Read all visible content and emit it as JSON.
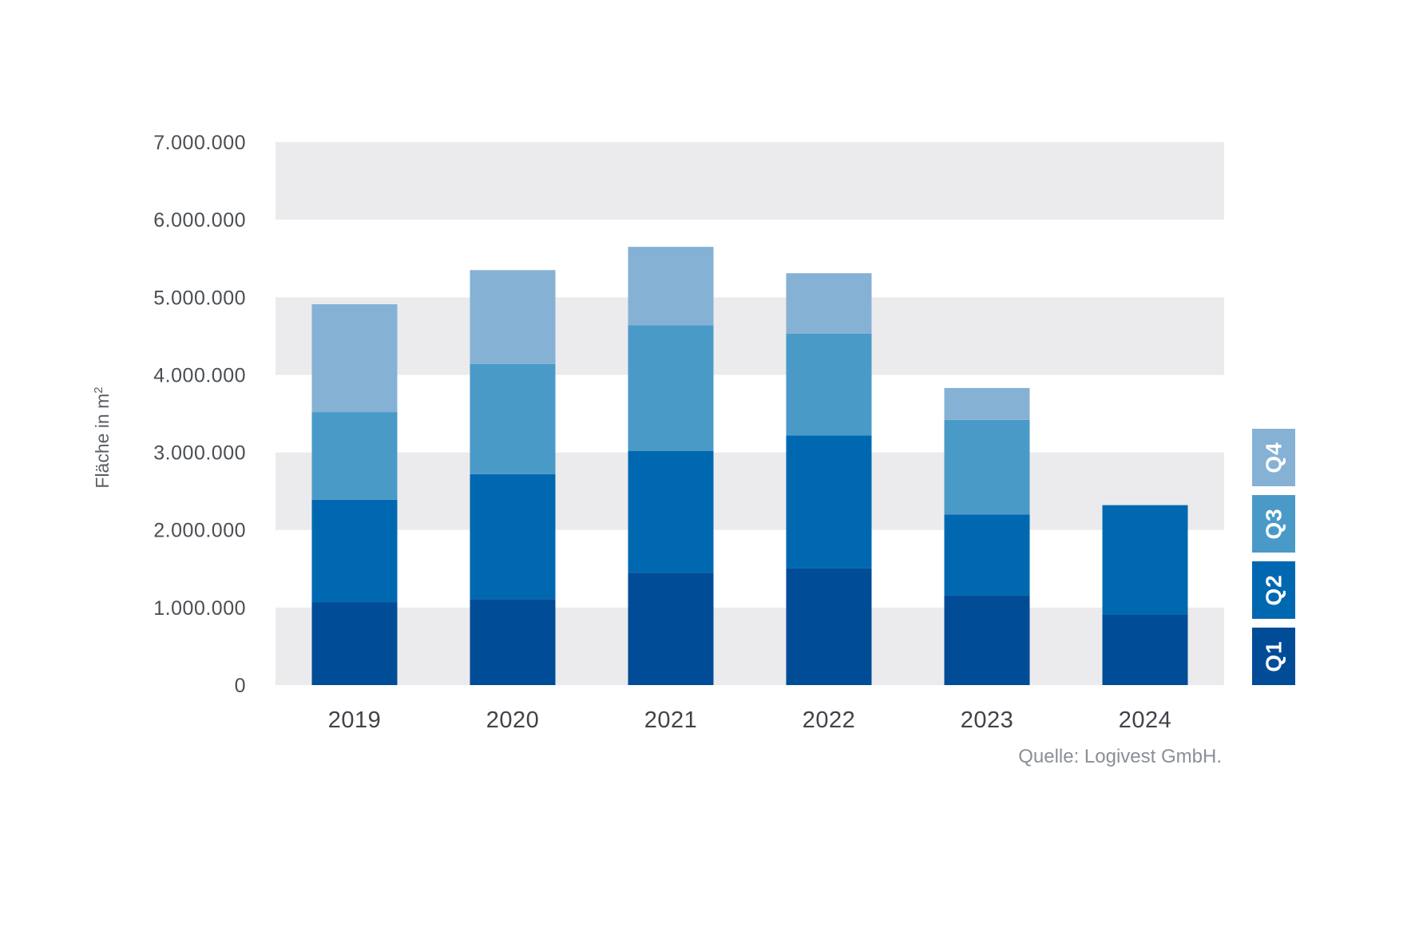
{
  "chart_data": {
    "type": "bar",
    "stacked": true,
    "categories": [
      "2019",
      "2020",
      "2021",
      "2022",
      "2023",
      "2024"
    ],
    "series": [
      {
        "name": "Q1",
        "color": "#004c97",
        "values": [
          1070000,
          1110000,
          1450000,
          1510000,
          1160000,
          910000
        ]
      },
      {
        "name": "Q2",
        "color": "#0068b1",
        "values": [
          1320000,
          1610000,
          1570000,
          1710000,
          1040000,
          1410000
        ]
      },
      {
        "name": "Q3",
        "color": "#4a9ac8",
        "values": [
          1130000,
          1420000,
          1620000,
          1310000,
          1220000,
          null
        ]
      },
      {
        "name": "Q4",
        "color": "#85b1d5",
        "values": [
          1390000,
          1210000,
          1010000,
          780000,
          410000,
          null
        ]
      }
    ],
    "ylabel": "Fläche in m",
    "ylabel_superscript": "2",
    "ylim": [
      0,
      7000000
    ],
    "yticks": [
      0,
      1000000,
      2000000,
      3000000,
      4000000,
      5000000,
      6000000,
      7000000
    ],
    "ytick_labels": [
      "0",
      "1.000.000",
      "2.000.000",
      "3.000.000",
      "4.000.000",
      "5.000.000",
      "6.000.000",
      "7.000.000"
    ],
    "legend_position": "right",
    "band_colors": [
      "#ebebed",
      "#ffffff"
    ],
    "source": "Quelle: Logivest GmbH."
  }
}
